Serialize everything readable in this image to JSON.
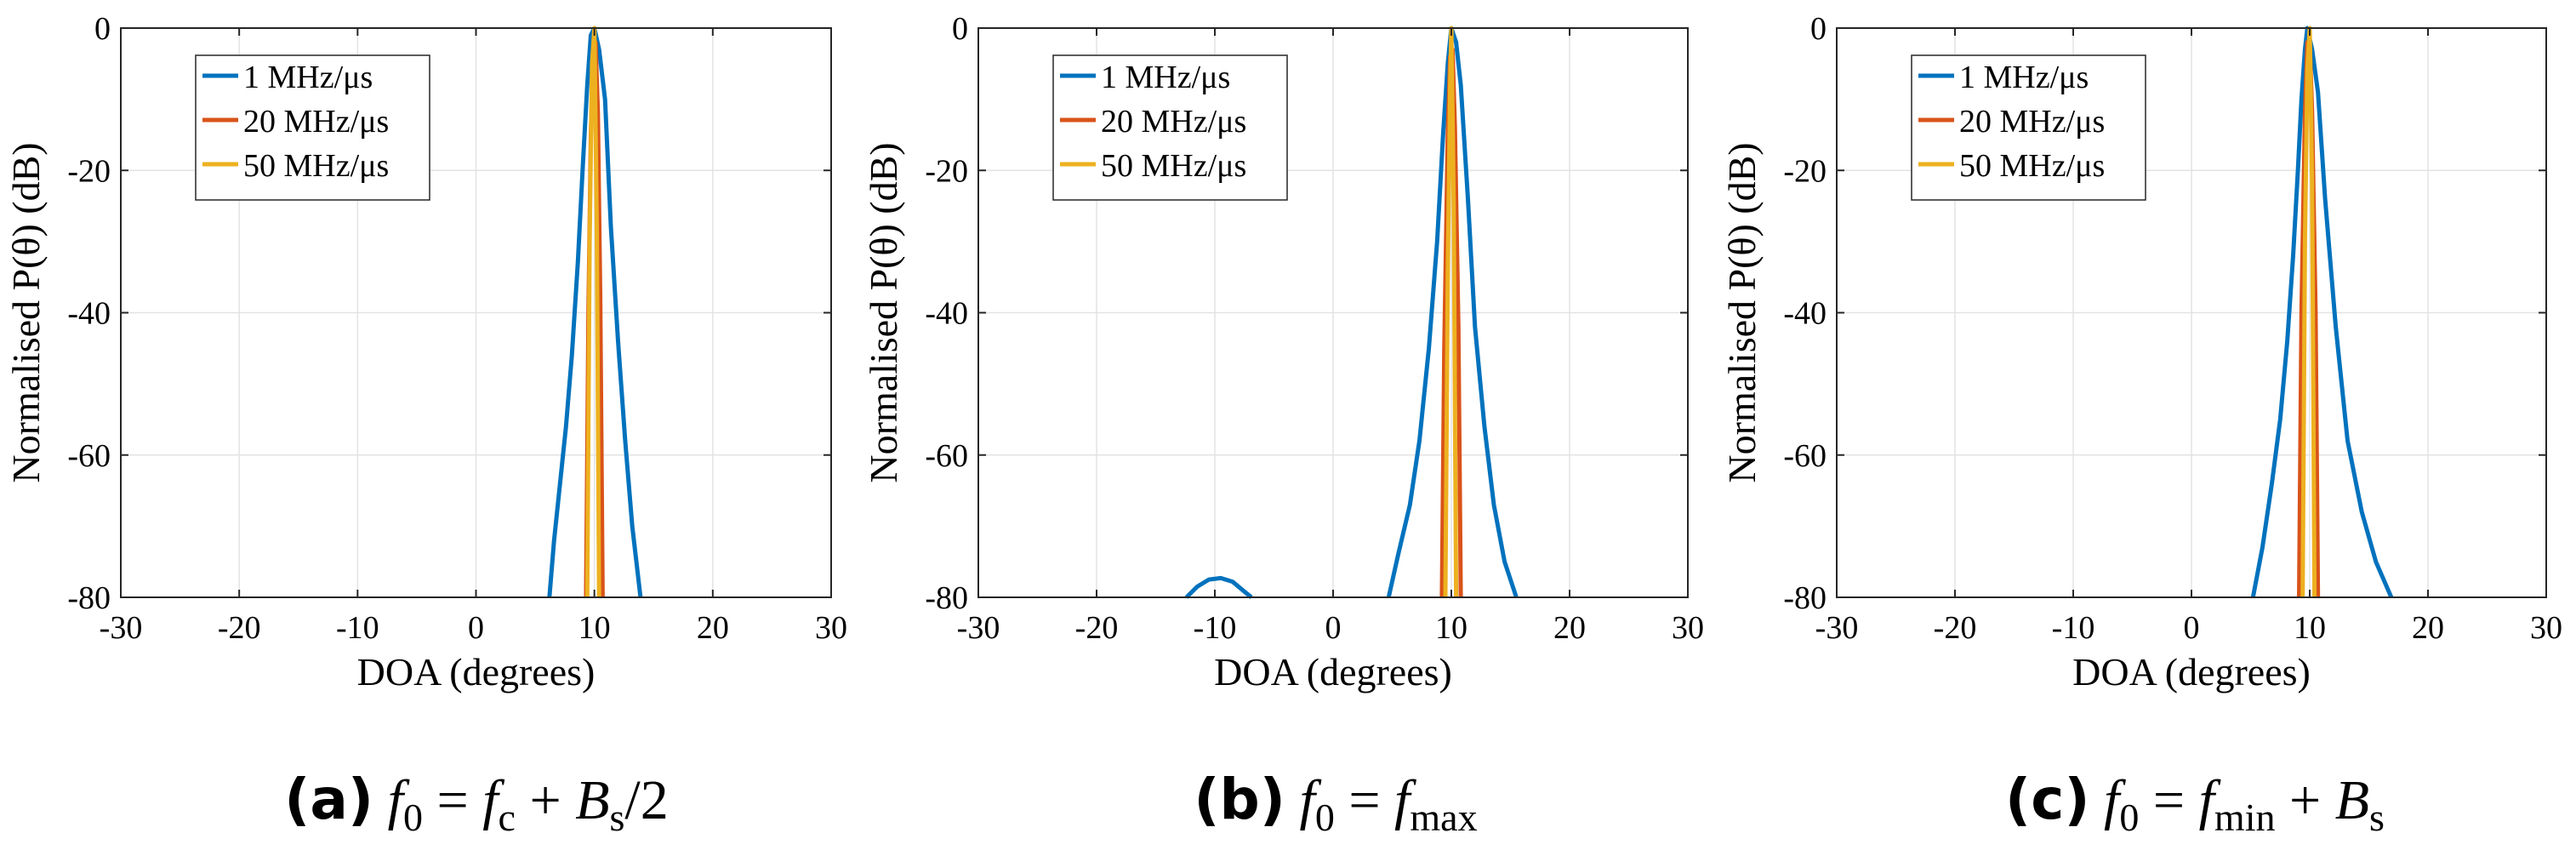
{
  "chart_data": [
    {
      "type": "line",
      "panel": "a",
      "caption": {
        "label": "(a)",
        "formula_lhs": "f",
        "lhs_sub": "0",
        "eq": "=",
        "t1": "f",
        "t1_sub": "c",
        "plus": "+",
        "t2": "B",
        "t2_sub": "s",
        "tail": "/2"
      },
      "xlabel": "DOA (degrees)",
      "ylabel": "Normalised P(θ) (dB)",
      "xlim": [
        -30,
        30
      ],
      "ylim": [
        -80,
        0
      ],
      "xticks": [
        "-30",
        "-20",
        "-10",
        "0",
        "10",
        "20",
        "30"
      ],
      "yticks": [
        "0",
        "-20",
        "-40",
        "-60",
        "-80"
      ],
      "grid": true,
      "legend_position": "top-left",
      "series": [
        {
          "name": "1 MHz/μs",
          "color": "#0072BD",
          "x": [
            6.2,
            6.6,
            7.1,
            7.6,
            8.1,
            8.6,
            9.0,
            9.4,
            9.7,
            10.0,
            10.4,
            10.9,
            11.4,
            12.0,
            12.6,
            13.2,
            13.9
          ],
          "y": [
            -80,
            -72,
            -64,
            -56,
            -46,
            -33,
            -20,
            -8,
            -1,
            0,
            -3,
            -10,
            -28,
            -44,
            -58,
            -70,
            -80
          ]
        },
        {
          "name": "20 MHz/μs",
          "color": "#D95319",
          "x": [
            9.3,
            9.5,
            9.7,
            9.9,
            10.1,
            10.3,
            10.5,
            10.7
          ],
          "y": [
            -80,
            -40,
            -15,
            -3,
            -2,
            -12,
            -38,
            -80
          ]
        },
        {
          "name": "50 MHz/μs",
          "color": "#EDB120",
          "x": [
            9.4,
            9.6,
            9.8,
            10.0,
            10.2,
            10.4
          ],
          "y": [
            -80,
            -30,
            -5,
            0,
            -28,
            -80
          ]
        }
      ]
    },
    {
      "type": "line",
      "panel": "b",
      "caption": {
        "label": "(b)",
        "formula_lhs": "f",
        "lhs_sub": "0",
        "eq": "=",
        "t1": "f",
        "t1_sub": "max",
        "plus": "",
        "t2": "",
        "t2_sub": "",
        "tail": ""
      },
      "xlabel": "DOA (degrees)",
      "ylabel": "Normalised P(θ) (dB)",
      "xlim": [
        -30,
        30
      ],
      "ylim": [
        -80,
        0
      ],
      "xticks": [
        "-30",
        "-20",
        "-10",
        "0",
        "10",
        "20",
        "30"
      ],
      "yticks": [
        "0",
        "-20",
        "-40",
        "-60",
        "-80"
      ],
      "grid": true,
      "legend_position": "top-left",
      "series": [
        {
          "name": "1 MHz/μs",
          "color": "#0072BD",
          "x": [
            -12.4,
            -11.5,
            -10.5,
            -9.5,
            -8.5,
            -7.5,
            -6.9,
            null,
            4.7,
            5.5,
            6.5,
            7.3,
            8.1,
            8.8,
            9.3,
            9.7,
            10.0,
            10.4,
            10.8,
            11.4,
            12.0,
            12.8,
            13.6,
            14.5,
            15.5
          ],
          "y": [
            -80,
            -78.5,
            -77.5,
            -77.3,
            -77.8,
            -79.2,
            -80,
            null,
            -80,
            -74,
            -67,
            -58,
            -45,
            -30,
            -15,
            -5,
            0,
            -2,
            -8,
            -24,
            -42,
            -56,
            -67,
            -75,
            -80
          ]
        },
        {
          "name": "20 MHz/μs",
          "color": "#D95319",
          "x": [
            9.2,
            9.4,
            9.7,
            9.9,
            10.1,
            10.3,
            10.6,
            10.8
          ],
          "y": [
            -80,
            -45,
            -15,
            -4,
            -3,
            -14,
            -42,
            -80
          ]
        },
        {
          "name": "50 MHz/μs",
          "color": "#EDB120",
          "x": [
            9.5,
            9.7,
            9.9,
            10.0,
            10.2,
            10.4
          ],
          "y": [
            -80,
            -35,
            -8,
            0,
            -25,
            -80
          ]
        }
      ]
    },
    {
      "type": "line",
      "panel": "c",
      "caption": {
        "label": "(c)",
        "formula_lhs": "f",
        "lhs_sub": "0",
        "eq": "=",
        "t1": "f",
        "t1_sub": "min",
        "plus": "+",
        "t2": "B",
        "t2_sub": "s",
        "tail": ""
      },
      "xlabel": "DOA (degrees)",
      "ylabel": "Normalised P(θ) (dB)",
      "xlim": [
        -30,
        30
      ],
      "ylim": [
        -80,
        0
      ],
      "xticks": [
        "-30",
        "-20",
        "-10",
        "0",
        "10",
        "20",
        "30"
      ],
      "yticks": [
        "0",
        "-20",
        "-40",
        "-60",
        "-80"
      ],
      "grid": true,
      "legend_position": "top-left",
      "series": [
        {
          "name": "1 MHz/μs",
          "color": "#0072BD",
          "x": [
            5.2,
            6.0,
            6.8,
            7.5,
            8.1,
            8.6,
            9.0,
            9.3,
            9.6,
            9.8,
            10.2,
            10.7,
            11.3,
            12.2,
            13.2,
            14.4,
            15.6,
            16.9
          ],
          "y": [
            -80,
            -73,
            -64,
            -55,
            -44,
            -32,
            -20,
            -10,
            -3,
            0,
            -3,
            -9,
            -24,
            -42,
            -58,
            -68,
            -75,
            -80
          ]
        },
        {
          "name": "20 MHz/μs",
          "color": "#D95319",
          "x": [
            9.1,
            9.3,
            9.6,
            9.8,
            10.0,
            10.2,
            10.5,
            10.7
          ],
          "y": [
            -80,
            -40,
            -12,
            -2,
            -2,
            -12,
            -40,
            -80
          ]
        },
        {
          "name": "50 MHz/μs",
          "color": "#EDB120",
          "x": [
            9.4,
            9.6,
            9.8,
            10.0,
            10.2,
            10.4
          ],
          "y": [
            -80,
            -30,
            -6,
            0,
            -22,
            -80
          ]
        }
      ]
    }
  ]
}
